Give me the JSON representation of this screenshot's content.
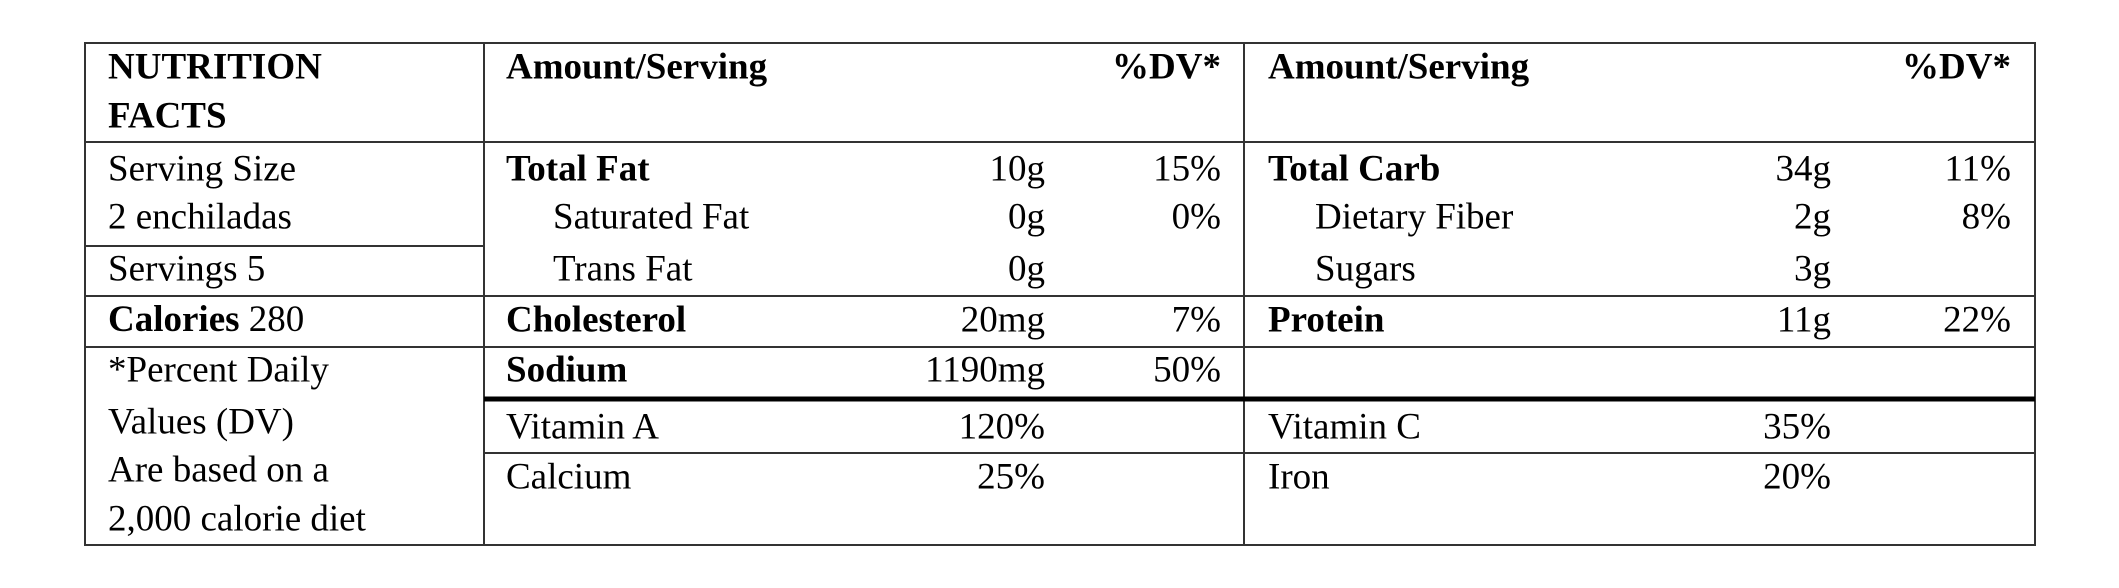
{
  "header": {
    "title": [
      "NUTRITION",
      "FACTS"
    ],
    "left": {
      "amount": "Amount/Serving",
      "dv": "%DV*"
    },
    "right": {
      "amount": "Amount/Serving",
      "dv": "%DV*"
    }
  },
  "info": {
    "serving_size": [
      "Serving Size",
      "2 enchiladas"
    ],
    "servings": "Servings 5",
    "calories": {
      "label": "Calories",
      "value": "280"
    },
    "note": [
      "*Percent Daily",
      "Values (DV)",
      "Are based on a",
      "2,000 calorie diet"
    ]
  },
  "nutrients": {
    "left": [
      {
        "label": "Total Fat",
        "amount": "10g",
        "dv": "15%",
        "bold": true
      },
      {
        "label": "Saturated Fat",
        "amount": "0g",
        "dv": "0%",
        "indent": true
      },
      {
        "label": "Trans Fat",
        "amount": "0g",
        "indent": true
      },
      {
        "label": "Cholesterol",
        "amount": "20mg",
        "dv": "7%",
        "bold": true
      },
      {
        "label": "Sodium",
        "amount": "1190mg",
        "dv": "50%",
        "bold": true
      }
    ],
    "right": [
      {
        "label": "Total Carb",
        "amount": "34g",
        "dv": "11%",
        "bold": true
      },
      {
        "label": "Dietary Fiber",
        "amount": "2g",
        "dv": "8%",
        "indent": true
      },
      {
        "label": "Sugars",
        "amount": "3g",
        "indent": true
      },
      {
        "label": "Protein",
        "amount": "11g",
        "dv": "22%",
        "bold": true
      }
    ]
  },
  "vitamins": {
    "left": [
      {
        "label": "Vitamin A",
        "value": "120%"
      },
      {
        "label": "Calcium",
        "value": "25%"
      }
    ],
    "right": [
      {
        "label": "Vitamin C",
        "value": "35%"
      },
      {
        "label": "Iron",
        "value": "20%"
      }
    ]
  }
}
